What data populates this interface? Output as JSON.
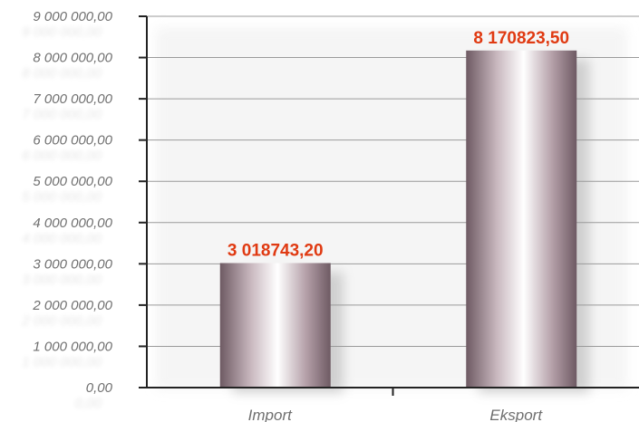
{
  "chart_data": {
    "type": "bar",
    "categories": [
      "Import",
      "Eksport"
    ],
    "values": [
      3018743.2,
      8170823.5
    ],
    "value_labels": [
      "3 018743,20",
      "8 170823,50"
    ],
    "y_ticks": [
      {
        "value": 0,
        "label": "0,00"
      },
      {
        "value": 1000000,
        "label": "1 000 000,00"
      },
      {
        "value": 2000000,
        "label": "2 000 000,00"
      },
      {
        "value": 3000000,
        "label": "3 000 000,00"
      },
      {
        "value": 4000000,
        "label": "4 000 000,00"
      },
      {
        "value": 5000000,
        "label": "5 000 000,00"
      },
      {
        "value": 6000000,
        "label": "6 000 000,00"
      },
      {
        "value": 7000000,
        "label": "7 000 000,00"
      },
      {
        "value": 8000000,
        "label": "8 000 000,00"
      },
      {
        "value": 9000000,
        "label": "9 000 000,00"
      }
    ],
    "ylim": [
      0,
      9000000
    ],
    "grid": true,
    "legend": "none",
    "title": "",
    "xlabel": "",
    "ylabel": "",
    "colors": {
      "bar_dark": "#6e5a63",
      "bar_light": "#ffffff",
      "data_label": "#e03a12",
      "axis": "#222222",
      "grid": "#9a9a9a",
      "tick_text": "#6f6f6f"
    }
  }
}
